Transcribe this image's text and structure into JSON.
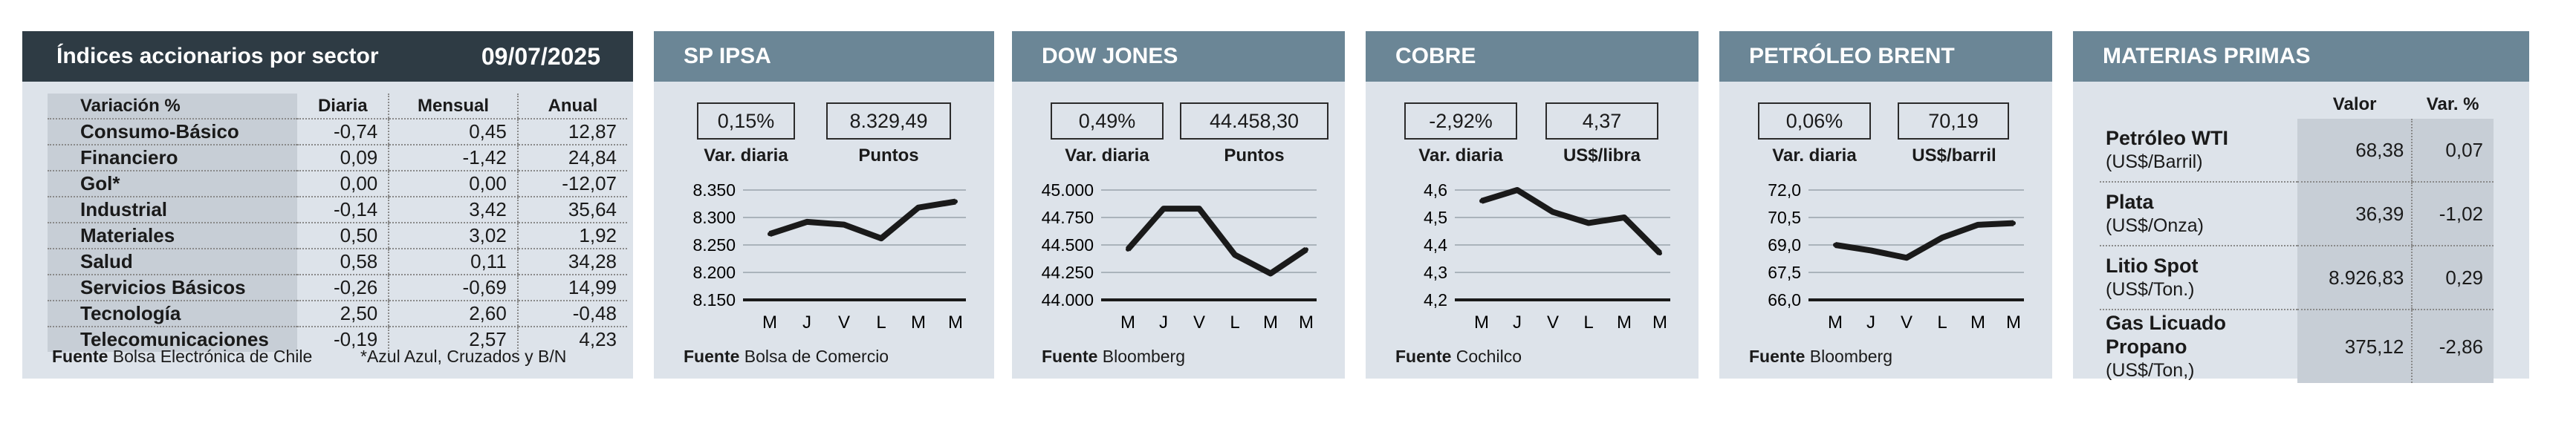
{
  "sectors": {
    "title": "Índices accionarios por sector",
    "date": "09/07/2025",
    "columns": [
      "Variación %",
      "Diaria",
      "Mensual",
      "Anual"
    ],
    "rows": [
      {
        "name": "Consumo-Básico",
        "diaria": "-0,74",
        "mensual": "0,45",
        "anual": "12,87"
      },
      {
        "name": "Financiero",
        "diaria": "0,09",
        "mensual": "-1,42",
        "anual": "24,84"
      },
      {
        "name": "Gol*",
        "diaria": "0,00",
        "mensual": "0,00",
        "anual": "-12,07"
      },
      {
        "name": "Industrial",
        "diaria": "-0,14",
        "mensual": "3,42",
        "anual": "35,64"
      },
      {
        "name": "Materiales",
        "diaria": "0,50",
        "mensual": "3,02",
        "anual": "1,92"
      },
      {
        "name": "Salud",
        "diaria": "0,58",
        "mensual": "0,11",
        "anual": "34,28"
      },
      {
        "name": "Servicios Básicos",
        "diaria": "-0,26",
        "mensual": "-0,69",
        "anual": "14,99"
      },
      {
        "name": "Tecnología",
        "diaria": "2,50",
        "mensual": "2,60",
        "anual": "-0,48"
      },
      {
        "name": "Telecomunicaciones",
        "diaria": "-0,19",
        "mensual": "2,57",
        "anual": "4,23"
      }
    ],
    "source_label": "Fuente",
    "source": "Bolsa Electrónica de Chile",
    "note": "*Azul Azul, Cruzados y B/N"
  },
  "chart_data": [
    {
      "type": "line",
      "title": "SP IPSA",
      "box1_value": "0,15%",
      "box1_label": "Var. diaria",
      "box2_value": "8.329,49",
      "box2_label": "Puntos",
      "categories": [
        "M",
        "J",
        "V",
        "L",
        "M",
        "M"
      ],
      "values": [
        8270,
        8292,
        8287,
        8262,
        8318,
        8329
      ],
      "ylim": [
        8150,
        8350
      ],
      "yticks": [
        "8.150",
        "8.200",
        "8.250",
        "8.300",
        "8.350"
      ],
      "ytick_values": [
        8150,
        8200,
        8250,
        8300,
        8350
      ],
      "source_label": "Fuente",
      "source": "Bolsa de Comercio"
    },
    {
      "type": "line",
      "title": "DOW JONES",
      "box1_value": "0,49%",
      "box1_label": "Var. diaria",
      "box2_value": "44.458,30",
      "box2_label": "Puntos",
      "categories": [
        "M",
        "J",
        "V",
        "L",
        "M",
        "M"
      ],
      "values": [
        44460,
        44830,
        44830,
        44410,
        44240,
        44458
      ],
      "ylim": [
        44000,
        45000
      ],
      "yticks": [
        "44.000",
        "44.250",
        "44.500",
        "44.750",
        "45.000"
      ],
      "ytick_values": [
        44000,
        44250,
        44500,
        44750,
        45000
      ],
      "source_label": "Fuente",
      "source": "Bloomberg"
    },
    {
      "type": "line",
      "title": "COBRE",
      "box1_value": "-2,92%",
      "box1_label": "Var. diaria",
      "box2_value": "4,37",
      "box2_label": "US$/libra",
      "categories": [
        "M",
        "J",
        "V",
        "L",
        "M",
        "M"
      ],
      "values": [
        4.56,
        4.6,
        4.52,
        4.48,
        4.5,
        4.37
      ],
      "ylim": [
        4.2,
        4.6
      ],
      "yticks": [
        "4,2",
        "4,3",
        "4,4",
        "4,5",
        "4,6"
      ],
      "ytick_values": [
        4.2,
        4.3,
        4.4,
        4.5,
        4.6
      ],
      "source_label": "Fuente",
      "source": "Cochilco"
    },
    {
      "type": "line",
      "title": "PETRÓLEO BRENT",
      "box1_value": "0,06%",
      "box1_label": "Var. diaria",
      "box2_value": "70,19",
      "box2_label": "US$/barril",
      "categories": [
        "M",
        "J",
        "V",
        "L",
        "M",
        "M"
      ],
      "values": [
        69.0,
        68.7,
        68.3,
        69.4,
        70.1,
        70.19
      ],
      "ylim": [
        66.0,
        72.0
      ],
      "yticks": [
        "66,0",
        "67,5",
        "69,0",
        "70,5",
        "72,0"
      ],
      "ytick_values": [
        66.0,
        67.5,
        69.0,
        70.5,
        72.0
      ],
      "source_label": "Fuente",
      "source": "Bloomberg"
    }
  ],
  "commodities": {
    "title": "MATERIAS PRIMAS",
    "columns": [
      "Valor",
      "Var. %"
    ],
    "rows": [
      {
        "name": "Petróleo WTI",
        "unit": "(US$/Barril)",
        "valor": "68,38",
        "var": "0,07"
      },
      {
        "name": "Plata",
        "unit": "(US$/Onza)",
        "valor": "36,39",
        "var": "-1,02"
      },
      {
        "name": "Litio Spot",
        "unit": "(US$/Ton.)",
        "valor": "8.926,83",
        "var": "0,29"
      },
      {
        "name": "Gas Licuado Propano",
        "unit": "(US$/Ton,)",
        "valor": "375,12",
        "var": "-2,86"
      }
    ]
  },
  "colors": {
    "panel_bg": "#dde3ea",
    "header_blue": "#6b8696",
    "header_dark": "#2e3b44",
    "line": "#1a1a1a"
  }
}
